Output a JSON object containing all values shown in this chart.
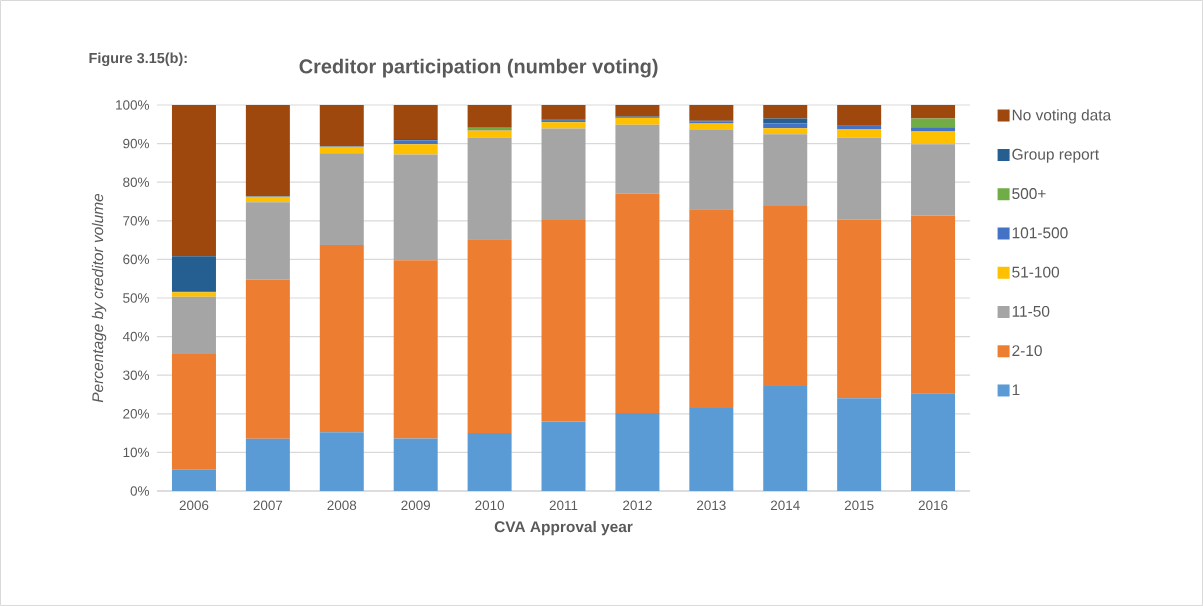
{
  "chart_data": {
    "type": "bar",
    "stacked": true,
    "title": "Creditor participation (number voting)",
    "annotations": [
      "Figure 3.15(b):"
    ],
    "xlabel": "CVA Approval year",
    "ylabel": "Percentage by creditor volume",
    "categories": [
      "2006",
      "2007",
      "2008",
      "2009",
      "2010",
      "2011",
      "2012",
      "2013",
      "2014",
      "2015",
      "2016"
    ],
    "series": [
      {
        "name": "1",
        "color": "#5b9bd5",
        "values": [
          5.5,
          13.5,
          15.2,
          13.6,
          15,
          18,
          20.2,
          21.5,
          27.2,
          24,
          25.3
        ]
      },
      {
        "name": "2-10",
        "color": "#ed7d31",
        "values": [
          30,
          41.3,
          48.5,
          46.2,
          50.2,
          52.2,
          56.8,
          51.5,
          46.6,
          46.3,
          46.1
        ]
      },
      {
        "name": "11-50",
        "color": "#a5a5a5",
        "values": [
          14.8,
          20,
          23.8,
          27.4,
          26.4,
          23.7,
          17.9,
          20.5,
          18.6,
          21.2,
          18.4
        ]
      },
      {
        "name": "51-100",
        "color": "#ffc000",
        "values": [
          1.2,
          1.4,
          1.7,
          2.6,
          1.8,
          1.6,
          1.7,
          1.7,
          1.6,
          2.3,
          3.3
        ]
      },
      {
        "name": "101-500",
        "color": "#4472c4",
        "values": [
          0.3,
          0.2,
          0.2,
          1.0,
          0.3,
          0.4,
          0.2,
          0.5,
          1.2,
          0.8,
          1.1
        ]
      },
      {
        "name": "500+",
        "color": "#70ad47",
        "values": [
          0,
          0,
          0,
          0,
          0.4,
          0,
          0,
          0,
          0,
          0,
          2.3
        ]
      },
      {
        "name": "Group report",
        "color": "#255e91",
        "values": [
          9,
          0,
          0,
          0.4,
          0,
          0.3,
          0.2,
          0.2,
          1.3,
          0.2,
          0
        ]
      },
      {
        "name": "No voting data",
        "color": "#9e480e",
        "values": [
          39.2,
          23.6,
          10.6,
          8.8,
          5.9,
          3.8,
          3.0,
          4.1,
          3.5,
          5.2,
          3.5
        ]
      }
    ],
    "ylim": [
      0,
      100
    ],
    "yticks": [
      {
        "value": 0,
        "label": "0%"
      },
      {
        "value": 10,
        "label": "10%"
      },
      {
        "value": 20,
        "label": "20%"
      },
      {
        "value": 30,
        "label": "30%"
      },
      {
        "value": 40,
        "label": "40%"
      },
      {
        "value": 50,
        "label": "50%"
      },
      {
        "value": 60,
        "label": "60%"
      },
      {
        "value": 70,
        "label": "70%"
      },
      {
        "value": 80,
        "label": "80%"
      },
      {
        "value": 90,
        "label": "90%"
      },
      {
        "value": 100,
        "label": "100%"
      }
    ],
    "grid": "y",
    "legend": "right"
  }
}
